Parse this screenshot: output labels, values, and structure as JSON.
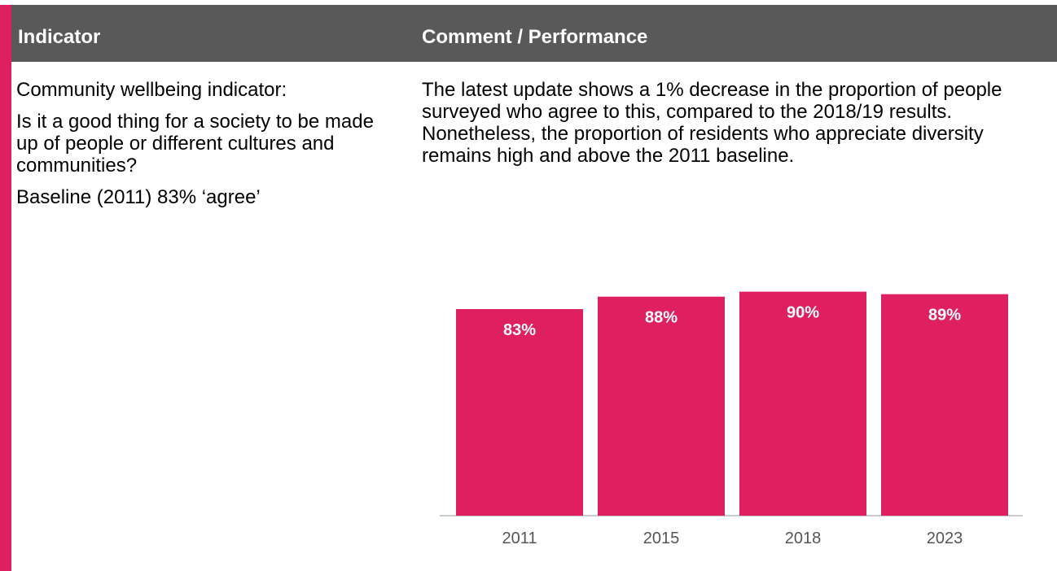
{
  "header": {
    "indicator": "Indicator",
    "comment": "Comment / Performance"
  },
  "indicator": {
    "title": "Community wellbeing indicator:",
    "question": "Is it a good thing for a society to be made up of people or different cultures and communities?",
    "baseline": "Baseline (2011) 83% ‘agree’"
  },
  "comment": {
    "text": "The latest update shows a 1% decrease in the proportion of people surveyed who agree to this, compared to the 2018/19 results. Nonetheless, the proportion of residents who appreciate diversity remains high and above the 2011 baseline."
  },
  "colors": {
    "accent": "#DE2060",
    "header_bg": "#595959",
    "bar": "#DE2060"
  },
  "chart_data": {
    "type": "bar",
    "categories": [
      "2011",
      "2015",
      "2018",
      "2023"
    ],
    "values": [
      83,
      88,
      90,
      89
    ],
    "value_labels": [
      "83%",
      "88%",
      "90%",
      "89%"
    ],
    "title": "",
    "xlabel": "",
    "ylabel": "",
    "ylim": [
      0,
      100
    ],
    "grid": false,
    "legend": "none"
  }
}
